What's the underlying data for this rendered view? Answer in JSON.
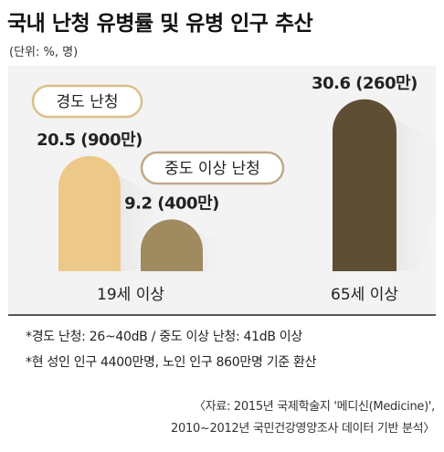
{
  "header": {
    "title": "국내 난청 유병률 및 유병 인구 추산",
    "unit": "(단위: %, 명)"
  },
  "legend": {
    "mild_label": "경도 난청",
    "moderate_label": "중도 이상 난청"
  },
  "colors": {
    "mild": "#ecc889",
    "moderate": "#a08a60",
    "severe": "#5e4e33",
    "legend_border": "#d9c089"
  },
  "chart_data": {
    "type": "bar",
    "title": "국내 난청 유병률 및 유병 인구 추산",
    "units": "%, 명",
    "categories": [
      "19세 이상",
      "65세 이상"
    ],
    "ylim": [
      0,
      33
    ],
    "grid": false,
    "bars": [
      {
        "category": "19세 이상",
        "series": "경도 난청",
        "value": 20.5,
        "label": "20.5 (900만)",
        "color": "#ecc889"
      },
      {
        "category": "19세 이상",
        "series": "중도 이상 난청",
        "value": 9.2,
        "label": "9.2 (400만)",
        "color": "#a08a60"
      },
      {
        "category": "65세 이상",
        "series": "",
        "value": 30.6,
        "label": "30.6 (260만)",
        "color": "#5e4e33"
      }
    ]
  },
  "footnotes": {
    "note1": "*경도 난청: 26~40dB / 중도 이상 난청: 41dB 이상",
    "note2": "*현 성인 인구 4400만명, 노인 인구 860만명 기준 환산"
  },
  "source": {
    "line1": "〈자료: 2015년 국제학술지 '메디신(Medicine)',",
    "line2": "2010~2012년 국민건강영양조사 데이터 기반 분석〉"
  }
}
